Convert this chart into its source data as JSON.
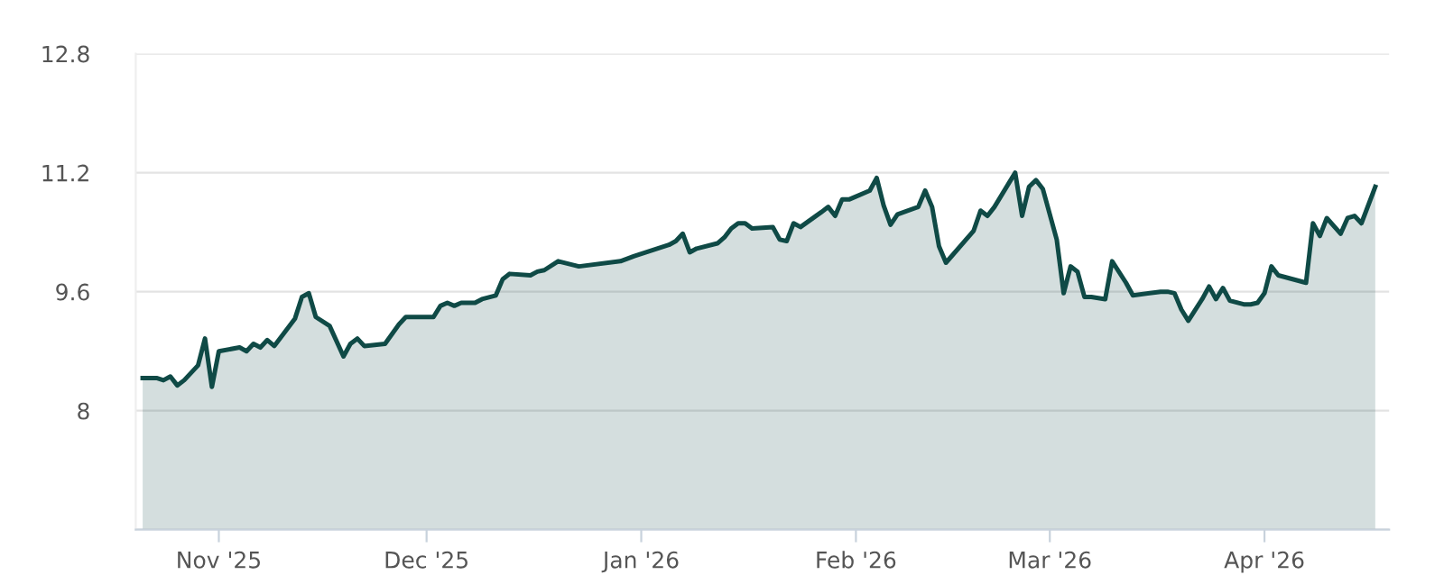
{
  "chart_data": {
    "type": "area",
    "x": [
      "2025-10-21",
      "2025-10-23",
      "2025-10-24",
      "2025-10-25",
      "2025-10-26",
      "2025-10-27",
      "2025-10-29",
      "2025-10-30",
      "2025-10-31",
      "2025-11-01",
      "2025-11-04",
      "2025-11-05",
      "2025-11-06",
      "2025-11-07",
      "2025-11-08",
      "2025-11-09",
      "2025-11-12",
      "2025-11-13",
      "2025-11-14",
      "2025-11-15",
      "2025-11-17",
      "2025-11-19",
      "2025-11-20",
      "2025-11-21",
      "2025-11-22",
      "2025-11-25",
      "2025-11-27",
      "2025-11-28",
      "2025-12-02",
      "2025-12-03",
      "2025-12-04",
      "2025-12-05",
      "2025-12-06",
      "2025-12-08",
      "2025-12-09",
      "2025-12-11",
      "2025-12-12",
      "2025-12-13",
      "2025-12-16",
      "2025-12-17",
      "2025-12-18",
      "2025-12-20",
      "2025-12-23",
      "2025-12-29",
      "2025-12-31",
      "2026-01-05",
      "2026-01-06",
      "2026-01-07",
      "2026-01-08",
      "2026-01-09",
      "2026-01-12",
      "2026-01-13",
      "2026-01-14",
      "2026-01-15",
      "2026-01-16",
      "2026-01-17",
      "2026-01-20",
      "2026-01-21",
      "2026-01-22",
      "2026-01-23",
      "2026-01-24",
      "2026-01-27",
      "2026-01-28",
      "2026-01-29",
      "2026-01-30",
      "2026-01-31",
      "2026-02-03",
      "2026-02-04",
      "2026-02-05",
      "2026-02-06",
      "2026-02-07",
      "2026-02-10",
      "2026-02-11",
      "2026-02-12",
      "2026-02-13",
      "2026-02-14",
      "2026-02-18",
      "2026-02-19",
      "2026-02-20",
      "2026-02-21",
      "2026-02-24",
      "2026-02-25",
      "2026-02-26",
      "2026-02-27",
      "2026-02-28",
      "2026-03-02",
      "2026-03-03",
      "2026-03-04",
      "2026-03-05",
      "2026-03-06",
      "2026-03-07",
      "2026-03-09",
      "2026-03-10",
      "2026-03-12",
      "2026-03-13",
      "2026-03-17",
      "2026-03-18",
      "2026-03-19",
      "2026-03-20",
      "2026-03-21",
      "2026-03-23",
      "2026-03-24",
      "2026-03-25",
      "2026-03-26",
      "2026-03-27",
      "2026-03-29",
      "2026-03-30",
      "2026-03-31",
      "2026-04-01",
      "2026-04-02",
      "2026-04-03",
      "2026-04-07",
      "2026-04-08",
      "2026-04-09",
      "2026-04-10",
      "2026-04-12",
      "2026-04-13",
      "2026-04-14",
      "2026-04-15",
      "2026-04-17"
    ],
    "series": [
      {
        "color": "#0f4a46",
        "values": [
          8.44,
          8.44,
          8.41,
          8.46,
          8.34,
          8.41,
          8.61,
          8.97,
          8.32,
          8.8,
          8.85,
          8.8,
          8.9,
          8.85,
          8.95,
          8.87,
          9.24,
          9.53,
          9.58,
          9.26,
          9.14,
          8.73,
          8.9,
          8.97,
          8.87,
          8.9,
          9.16,
          9.26,
          9.26,
          9.41,
          9.45,
          9.41,
          9.45,
          9.45,
          9.5,
          9.55,
          9.77,
          9.84,
          9.82,
          9.87,
          9.89,
          10.01,
          9.94,
          10.01,
          10.08,
          10.23,
          10.28,
          10.38,
          10.13,
          10.18,
          10.25,
          10.33,
          10.45,
          10.52,
          10.52,
          10.45,
          10.47,
          10.3,
          10.28,
          10.52,
          10.47,
          10.67,
          10.74,
          10.62,
          10.84,
          10.84,
          10.96,
          11.13,
          10.76,
          10.5,
          10.64,
          10.74,
          10.96,
          10.74,
          10.21,
          9.99,
          10.42,
          10.69,
          10.62,
          10.74,
          11.2,
          10.62,
          11.01,
          11.1,
          10.98,
          10.3,
          9.58,
          9.94,
          9.87,
          9.53,
          9.53,
          9.5,
          10.01,
          9.72,
          9.55,
          9.6,
          9.6,
          9.58,
          9.36,
          9.21,
          9.5,
          9.67,
          9.5,
          9.65,
          9.48,
          9.43,
          9.43,
          9.45,
          9.58,
          9.94,
          9.82,
          9.72,
          10.52,
          10.35,
          10.59,
          10.38,
          10.59,
          10.62,
          10.52,
          11.01
        ]
      }
    ],
    "xlim": [
      "2025-10-20",
      "2026-04-19"
    ],
    "xticks": [
      {
        "value": "2025-11-01",
        "label": "Nov '25"
      },
      {
        "value": "2025-12-01",
        "label": "Dec '25"
      },
      {
        "value": "2026-01-01",
        "label": "Jan '26"
      },
      {
        "value": "2026-02-01",
        "label": "Feb '26"
      },
      {
        "value": "2026-03-01",
        "label": "Mar '26"
      },
      {
        "value": "2026-04-01",
        "label": "Apr '26"
      }
    ],
    "ylim": [
      6.4,
      12.8
    ],
    "yticks": [
      {
        "value": 6.4,
        "label": null
      },
      8,
      9.6,
      11.2,
      12.8
    ],
    "grid": "y",
    "marker": "none",
    "line_style": "solid"
  }
}
